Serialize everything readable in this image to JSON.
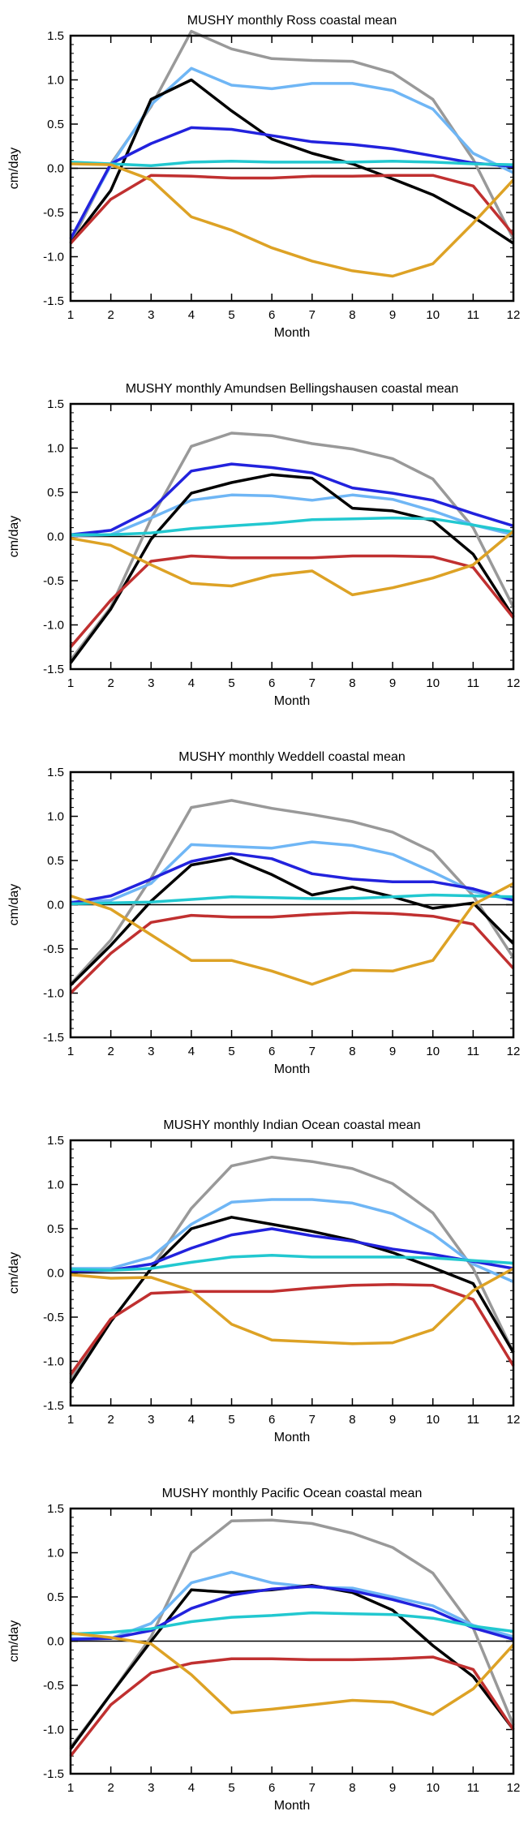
{
  "chart_data": [
    {
      "type": "line",
      "title": "MUSHY monthly Ross coastal mean",
      "xlabel": "Month",
      "ylabel": "cm/day",
      "x": [
        1,
        2,
        3,
        4,
        5,
        6,
        7,
        8,
        9,
        10,
        11,
        12
      ],
      "xlim": [
        1,
        12
      ],
      "ylim": [
        -1.5,
        1.5
      ],
      "yticks": [
        "-1.5",
        "-1.0",
        "-0.5",
        "0.0",
        "0.5",
        "1.0",
        "1.5"
      ],
      "zero_line": true,
      "grid": false,
      "series": [
        {
          "color": "#999999",
          "values": [
            -0.85,
            0.05,
            0.7,
            1.55,
            1.35,
            1.24,
            1.22,
            1.21,
            1.08,
            0.78,
            0.1,
            -0.8
          ]
        },
        {
          "color": "#6fb6f5",
          "values": [
            -0.8,
            0.03,
            0.72,
            1.13,
            0.94,
            0.9,
            0.96,
            0.96,
            0.88,
            0.67,
            0.17,
            -0.05
          ]
        },
        {
          "color": "#000000",
          "values": [
            -0.85,
            -0.25,
            0.78,
            1.0,
            0.65,
            0.33,
            0.17,
            0.05,
            -0.12,
            -0.3,
            -0.55,
            -0.85
          ]
        },
        {
          "color": "#2222dd",
          "values": [
            -0.8,
            0.05,
            0.28,
            0.46,
            0.44,
            0.37,
            0.3,
            0.27,
            0.22,
            0.14,
            0.06,
            0.02
          ]
        },
        {
          "color": "#22c8d0",
          "values": [
            0.07,
            0.05,
            0.03,
            0.07,
            0.08,
            0.07,
            0.07,
            0.07,
            0.08,
            0.07,
            0.05,
            0.04
          ]
        },
        {
          "color": "#c03030",
          "values": [
            -0.85,
            -0.35,
            -0.08,
            -0.09,
            -0.11,
            -0.11,
            -0.09,
            -0.09,
            -0.08,
            -0.08,
            -0.2,
            -0.75
          ]
        },
        {
          "color": "#dda225",
          "values": [
            0.05,
            0.04,
            -0.13,
            -0.55,
            -0.7,
            -0.9,
            -1.05,
            -1.16,
            -1.22,
            -1.08,
            -0.62,
            -0.13
          ]
        }
      ]
    },
    {
      "type": "line",
      "title": "MUSHY monthly Amundsen Bellingshausen coastal mean",
      "xlabel": "Month",
      "ylabel": "cm/day",
      "x": [
        1,
        2,
        3,
        4,
        5,
        6,
        7,
        8,
        9,
        10,
        11,
        12
      ],
      "xlim": [
        1,
        12
      ],
      "ylim": [
        -1.5,
        1.5
      ],
      "yticks": [
        "-1.5",
        "-1.0",
        "-0.5",
        "0.0",
        "0.5",
        "1.0",
        "1.5"
      ],
      "zero_line": true,
      "grid": false,
      "series": [
        {
          "color": "#999999",
          "values": [
            -1.4,
            -0.8,
            0.2,
            1.02,
            1.17,
            1.14,
            1.05,
            0.99,
            0.88,
            0.65,
            0.1,
            -0.8
          ]
        },
        {
          "color": "#6fb6f5",
          "values": [
            0.01,
            0.02,
            0.21,
            0.41,
            0.47,
            0.46,
            0.41,
            0.47,
            0.42,
            0.29,
            0.13,
            0.02
          ]
        },
        {
          "color": "#000000",
          "values": [
            -1.43,
            -0.82,
            -0.03,
            0.49,
            0.61,
            0.7,
            0.66,
            0.32,
            0.29,
            0.18,
            -0.2,
            -0.91
          ]
        },
        {
          "color": "#2222dd",
          "values": [
            0.02,
            0.07,
            0.3,
            0.74,
            0.82,
            0.78,
            0.72,
            0.55,
            0.49,
            0.41,
            0.26,
            0.12
          ]
        },
        {
          "color": "#22c8d0",
          "values": [
            0.02,
            0.02,
            0.04,
            0.09,
            0.12,
            0.15,
            0.19,
            0.2,
            0.21,
            0.2,
            0.13,
            0.05
          ]
        },
        {
          "color": "#c03030",
          "values": [
            -1.25,
            -0.72,
            -0.28,
            -0.22,
            -0.24,
            -0.24,
            -0.24,
            -0.22,
            -0.22,
            -0.23,
            -0.35,
            -0.92
          ]
        },
        {
          "color": "#dda225",
          "values": [
            -0.02,
            -0.1,
            -0.32,
            -0.53,
            -0.56,
            -0.44,
            -0.39,
            -0.66,
            -0.58,
            -0.47,
            -0.32,
            0.06
          ]
        }
      ]
    },
    {
      "type": "line",
      "title": "MUSHY monthly Weddell coastal mean",
      "xlabel": "Month",
      "ylabel": "cm/day",
      "x": [
        1,
        2,
        3,
        4,
        5,
        6,
        7,
        8,
        9,
        10,
        11,
        12
      ],
      "xlim": [
        1,
        12
      ],
      "ylim": [
        -1.5,
        1.5
      ],
      "yticks": [
        "-1.5",
        "-1.0",
        "-0.5",
        "0.0",
        "0.5",
        "1.0",
        "1.5"
      ],
      "zero_line": true,
      "grid": false,
      "series": [
        {
          "color": "#999999",
          "values": [
            -0.9,
            -0.4,
            0.3,
            1.1,
            1.18,
            1.09,
            1.02,
            0.94,
            0.82,
            0.6,
            0.1,
            -0.6
          ]
        },
        {
          "color": "#6fb6f5",
          "values": [
            0.03,
            0.05,
            0.24,
            0.68,
            0.66,
            0.64,
            0.71,
            0.67,
            0.57,
            0.37,
            0.15,
            0.05
          ]
        },
        {
          "color": "#000000",
          "values": [
            -0.91,
            -0.46,
            0.04,
            0.45,
            0.53,
            0.34,
            0.11,
            0.2,
            0.09,
            -0.04,
            0.02,
            -0.44
          ]
        },
        {
          "color": "#2222dd",
          "values": [
            0.02,
            0.1,
            0.29,
            0.49,
            0.58,
            0.52,
            0.35,
            0.29,
            0.26,
            0.26,
            0.18,
            0.05
          ]
        },
        {
          "color": "#22c8d0",
          "values": [
            0.01,
            0.02,
            0.03,
            0.06,
            0.09,
            0.08,
            0.07,
            0.07,
            0.09,
            0.11,
            0.1,
            0.09
          ]
        },
        {
          "color": "#c03030",
          "values": [
            -1.0,
            -0.55,
            -0.2,
            -0.12,
            -0.14,
            -0.14,
            -0.11,
            -0.09,
            -0.1,
            -0.13,
            -0.22,
            -0.72
          ]
        },
        {
          "color": "#dda225",
          "values": [
            0.1,
            -0.05,
            -0.34,
            -0.63,
            -0.63,
            -0.75,
            -0.9,
            -0.74,
            -0.75,
            -0.63,
            0.0,
            0.24
          ]
        }
      ]
    },
    {
      "type": "line",
      "title": "MUSHY monthly Indian Ocean coastal mean",
      "xlabel": "Month",
      "ylabel": "cm/day",
      "x": [
        1,
        2,
        3,
        4,
        5,
        6,
        7,
        8,
        9,
        10,
        11,
        12
      ],
      "xlim": [
        1,
        12
      ],
      "ylim": [
        -1.5,
        1.5
      ],
      "yticks": [
        "-1.5",
        "-1.0",
        "-0.5",
        "0.0",
        "0.5",
        "1.0",
        "1.5"
      ],
      "zero_line": true,
      "grid": false,
      "series": [
        {
          "color": "#999999",
          "values": [
            -1.2,
            -0.55,
            0.05,
            0.73,
            1.21,
            1.31,
            1.26,
            1.18,
            1.01,
            0.68,
            0.05,
            -0.9
          ]
        },
        {
          "color": "#6fb6f5",
          "values": [
            0.05,
            0.05,
            0.18,
            0.55,
            0.8,
            0.83,
            0.83,
            0.79,
            0.67,
            0.44,
            0.1,
            -0.1
          ]
        },
        {
          "color": "#000000",
          "values": [
            -1.25,
            -0.55,
            0.05,
            0.5,
            0.63,
            0.55,
            0.47,
            0.37,
            0.23,
            0.06,
            -0.12,
            -0.9
          ]
        },
        {
          "color": "#2222dd",
          "values": [
            0.02,
            0.03,
            0.1,
            0.28,
            0.43,
            0.5,
            0.42,
            0.36,
            0.27,
            0.21,
            0.13,
            0.05
          ]
        },
        {
          "color": "#22c8d0",
          "values": [
            0.04,
            0.03,
            0.05,
            0.12,
            0.18,
            0.2,
            0.18,
            0.18,
            0.18,
            0.17,
            0.14,
            0.11
          ]
        },
        {
          "color": "#c03030",
          "values": [
            -1.15,
            -0.52,
            -0.23,
            -0.21,
            -0.21,
            -0.21,
            -0.17,
            -0.14,
            -0.13,
            -0.14,
            -0.3,
            -1.05
          ]
        },
        {
          "color": "#dda225",
          "values": [
            -0.02,
            -0.06,
            -0.05,
            -0.2,
            -0.58,
            -0.76,
            -0.78,
            -0.8,
            -0.79,
            -0.64,
            -0.2,
            0.05
          ]
        }
      ]
    },
    {
      "type": "line",
      "title": "MUSHY monthly Pacific Ocean coastal mean",
      "xlabel": "Month",
      "ylabel": "cm/day",
      "x": [
        1,
        2,
        3,
        4,
        5,
        6,
        7,
        8,
        9,
        10,
        11,
        12
      ],
      "xlim": [
        1,
        12
      ],
      "ylim": [
        -1.5,
        1.5
      ],
      "yticks": [
        "-1.5",
        "-1.0",
        "-0.5",
        "0.0",
        "0.5",
        "1.0",
        "1.5"
      ],
      "zero_line": true,
      "grid": false,
      "series": [
        {
          "color": "#999999",
          "values": [
            -1.2,
            -0.6,
            0.05,
            1.0,
            1.36,
            1.37,
            1.33,
            1.22,
            1.06,
            0.77,
            0.15,
            -0.95
          ]
        },
        {
          "color": "#6fb6f5",
          "values": [
            0.03,
            0.03,
            0.2,
            0.66,
            0.78,
            0.66,
            0.61,
            0.6,
            0.5,
            0.4,
            0.18,
            0.05
          ]
        },
        {
          "color": "#000000",
          "values": [
            -1.22,
            -0.6,
            0.0,
            0.58,
            0.55,
            0.58,
            0.63,
            0.55,
            0.35,
            -0.05,
            -0.4,
            -1.0
          ]
        },
        {
          "color": "#2222dd",
          "values": [
            0.02,
            0.03,
            0.12,
            0.37,
            0.52,
            0.59,
            0.62,
            0.57,
            0.47,
            0.35,
            0.15,
            0.02
          ]
        },
        {
          "color": "#22c8d0",
          "values": [
            0.08,
            0.1,
            0.14,
            0.22,
            0.27,
            0.29,
            0.32,
            0.31,
            0.3,
            0.26,
            0.17,
            0.11
          ]
        },
        {
          "color": "#c03030",
          "values": [
            -1.3,
            -0.72,
            -0.36,
            -0.25,
            -0.2,
            -0.2,
            -0.21,
            -0.21,
            -0.2,
            -0.18,
            -0.32,
            -1.0
          ]
        },
        {
          "color": "#dda225",
          "values": [
            0.09,
            0.04,
            -0.03,
            -0.38,
            -0.81,
            -0.77,
            -0.72,
            -0.67,
            -0.69,
            -0.83,
            -0.54,
            -0.04
          ]
        }
      ]
    }
  ]
}
